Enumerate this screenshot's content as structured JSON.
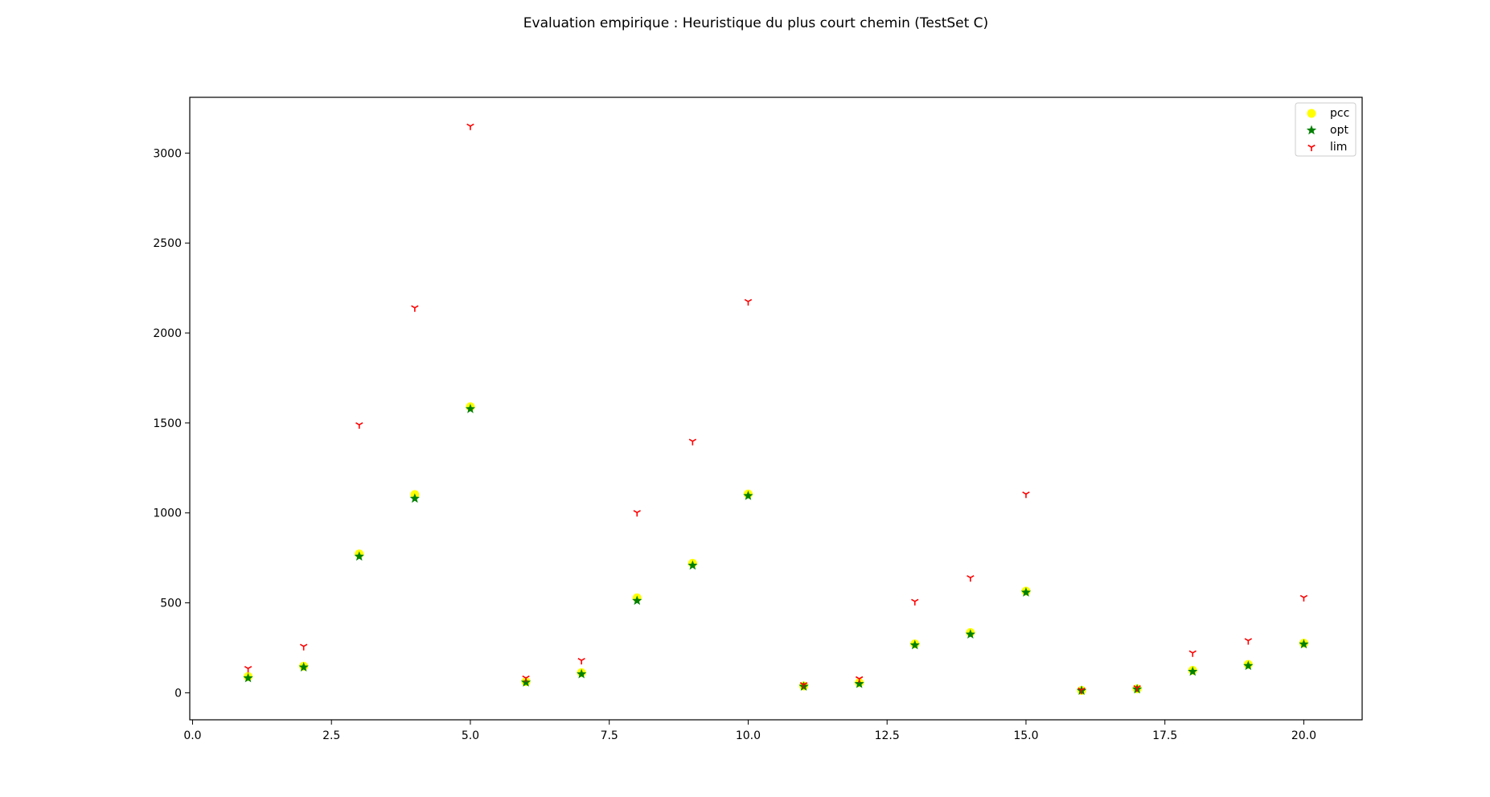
{
  "chart_data": {
    "type": "scatter",
    "title": "Evaluation empirique : Heuristique du plus court chemin (TestSet C)",
    "xlabel": "",
    "ylabel": "",
    "xlim": [
      -0.05,
      21.05
    ],
    "ylim": [
      -150,
      3310
    ],
    "xticks": [
      0,
      2.5,
      5,
      7.5,
      10,
      12.5,
      15,
      17.5,
      20
    ],
    "xtick_labels": [
      "0.0",
      "2.5",
      "5.0",
      "7.5",
      "10.0",
      "12.5",
      "15.0",
      "17.5",
      "20.0"
    ],
    "yticks": [
      0,
      500,
      1000,
      1500,
      2000,
      2500,
      3000
    ],
    "ytick_labels": [
      "0",
      "500",
      "1000",
      "1500",
      "2000",
      "2500",
      "3000"
    ],
    "grid": false,
    "legend_position": "top-right",
    "x": [
      1,
      2,
      3,
      4,
      5,
      6,
      7,
      8,
      9,
      10,
      11,
      12,
      13,
      14,
      15,
      16,
      17,
      18,
      19,
      20
    ],
    "series": [
      {
        "name": "pcc",
        "marker": "circle",
        "color": "#ffff00",
        "values": [
          90,
          148,
          772,
          1102,
          1590,
          62,
          112,
          528,
          720,
          1105,
          38,
          56,
          272,
          335,
          565,
          13,
          22,
          125,
          158,
          276
        ]
      },
      {
        "name": "opt",
        "marker": "star",
        "color": "#008000",
        "values": [
          82,
          142,
          758,
          1080,
          1578,
          58,
          104,
          512,
          708,
          1095,
          35,
          50,
          265,
          325,
          558,
          12,
          20,
          118,
          150,
          270
        ]
      },
      {
        "name": "lim",
        "marker": "tri_down",
        "color": "#ff0000",
        "values": [
          135,
          258,
          1490,
          2140,
          3150,
          82,
          180,
          1002,
          1398,
          2175,
          45,
          78,
          508,
          640,
          1105,
          15,
          28,
          222,
          290,
          530
        ]
      }
    ]
  }
}
